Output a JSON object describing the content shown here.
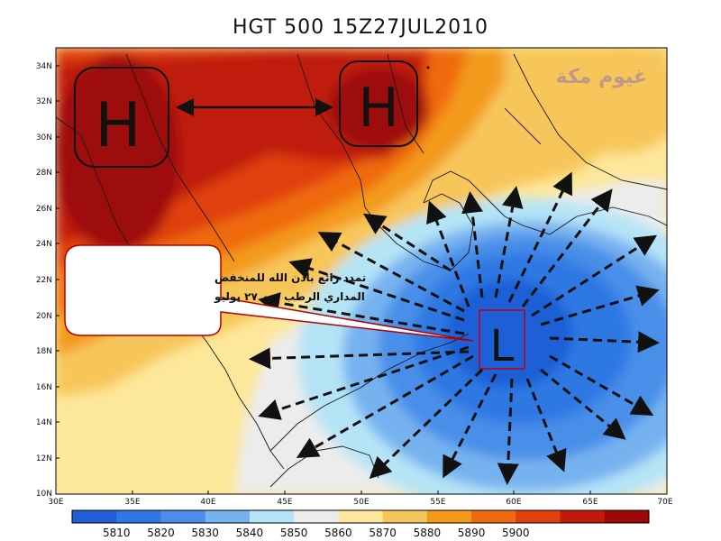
{
  "title": "HGT 500 15Z27JUL2010",
  "watermark": "غيوم مكة",
  "callout": {
    "line1": "تمدد رائع بأذن الله للمنخفض",
    "line2": "المداري الرطب يوم ٢٧ يوليو"
  },
  "markers": {
    "high_west": "H",
    "high_east": "H",
    "low": "L"
  },
  "axes": {
    "lat_labels": [
      "34N",
      "32N",
      "30N",
      "28N",
      "26N",
      "24N",
      "22N",
      "20N",
      "18N",
      "16N",
      "14N",
      "12N",
      "10N"
    ],
    "lon_labels": [
      "30E",
      "35E",
      "40E",
      "45E",
      "50E",
      "55E",
      "60E",
      "65E",
      "70E"
    ]
  },
  "colorbar": {
    "levels": [
      "5810",
      "5820",
      "5830",
      "5840",
      "5850",
      "5860",
      "5870",
      "5880",
      "5890",
      "5900"
    ],
    "colors": [
      "#1e5fd6",
      "#2f78e4",
      "#4a8ee8",
      "#77b2f0",
      "#b5e4f6",
      "#ececec",
      "#fde79a",
      "#f7c65a",
      "#f39a1a",
      "#ef6a10",
      "#e0400c",
      "#c01a0a",
      "#9e0808"
    ]
  }
}
